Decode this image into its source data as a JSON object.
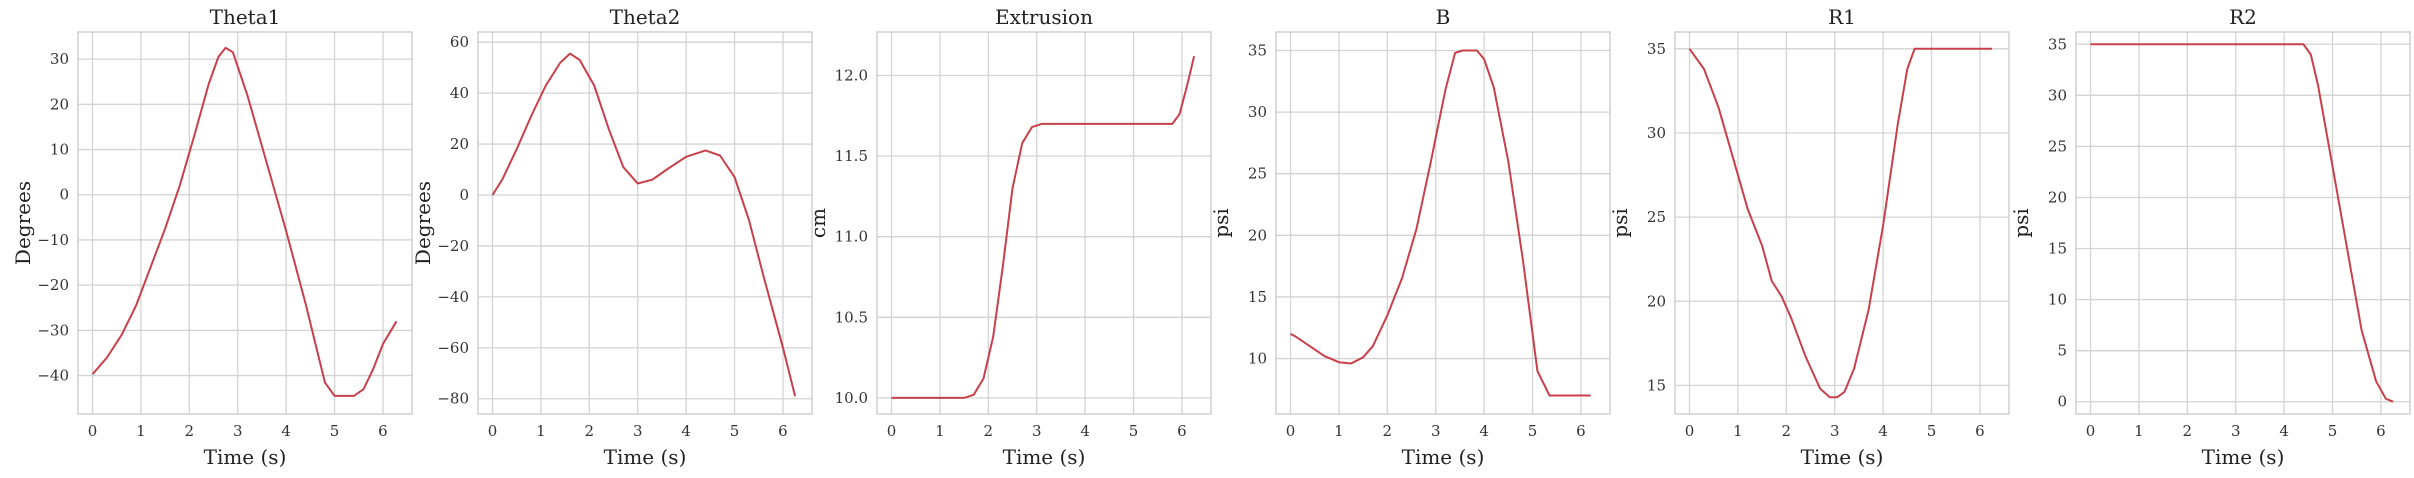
{
  "series_color": "#c8404a",
  "chart_data": [
    {
      "type": "line",
      "title": "Theta1",
      "xlabel": "Time (s)",
      "ylabel": "Degrees",
      "xlim": [
        -0.3,
        6.6
      ],
      "ylim": [
        -48.5,
        36
      ],
      "xticks": [
        0,
        1,
        2,
        3,
        4,
        5,
        6
      ],
      "yticks": [
        -40,
        -30,
        -20,
        -10,
        0,
        10,
        20,
        30
      ],
      "grid": true,
      "series": [
        {
          "x": [
            0,
            0.3,
            0.6,
            0.9,
            1.2,
            1.5,
            1.8,
            2.1,
            2.4,
            2.6,
            2.75,
            2.9,
            3.2,
            3.6,
            4.0,
            4.4,
            4.8,
            5.0,
            5.4,
            5.6,
            5.8,
            6.0,
            6.28
          ],
          "y": [
            -39.7,
            -36,
            -31,
            -24.5,
            -16,
            -7.5,
            2,
            13,
            24.5,
            30.5,
            32.5,
            31.5,
            22,
            7,
            -8,
            -24,
            -41.5,
            -44.5,
            -44.5,
            -43,
            -38.5,
            -33,
            -28
          ]
        }
      ]
    },
    {
      "type": "line",
      "title": "Theta2",
      "xlabel": "Time (s)",
      "ylabel": "Degrees",
      "xlim": [
        -0.3,
        6.6
      ],
      "ylim": [
        -86,
        64
      ],
      "xticks": [
        0,
        1,
        2,
        3,
        4,
        5,
        6
      ],
      "yticks": [
        -80,
        -60,
        -40,
        -20,
        0,
        20,
        40,
        60
      ],
      "grid": true,
      "series": [
        {
          "x": [
            0,
            0.2,
            0.5,
            0.8,
            1.1,
            1.4,
            1.6,
            1.8,
            2.1,
            2.4,
            2.7,
            3.0,
            3.3,
            3.6,
            4.0,
            4.4,
            4.7,
            5.0,
            5.3,
            5.6,
            6.0,
            6.25
          ],
          "y": [
            0,
            6,
            18,
            31,
            43,
            52,
            55.5,
            53,
            43,
            26,
            11,
            4.5,
            6,
            10,
            15,
            17.5,
            15.5,
            7,
            -10,
            -32,
            -60,
            -79
          ]
        }
      ]
    },
    {
      "type": "line",
      "title": "Extrusion",
      "xlabel": "Time (s)",
      "ylabel": "cm",
      "xlim": [
        -0.3,
        6.6
      ],
      "ylim": [
        9.9,
        12.27
      ],
      "xticks": [
        0,
        1,
        2,
        3,
        4,
        5,
        6
      ],
      "yticks": [
        10.0,
        10.5,
        11.0,
        11.5,
        12.0
      ],
      "grid": true,
      "series": [
        {
          "x": [
            0,
            0.5,
            1.0,
            1.5,
            1.7,
            1.9,
            2.1,
            2.3,
            2.5,
            2.7,
            2.9,
            3.1,
            3.5,
            4.0,
            4.5,
            5.0,
            5.5,
            5.8,
            5.95,
            6.1,
            6.25
          ],
          "y": [
            10.0,
            10.0,
            10.0,
            10.0,
            10.02,
            10.12,
            10.38,
            10.82,
            11.3,
            11.58,
            11.68,
            11.7,
            11.7,
            11.7,
            11.7,
            11.7,
            11.7,
            11.7,
            11.76,
            11.93,
            12.12
          ]
        }
      ]
    },
    {
      "type": "line",
      "title": "B",
      "xlabel": "Time (s)",
      "ylabel": "psi",
      "xlim": [
        -0.3,
        6.6
      ],
      "ylim": [
        5.5,
        36.5
      ],
      "xticks": [
        0,
        1,
        2,
        3,
        4,
        5,
        6
      ],
      "yticks": [
        10,
        15,
        20,
        25,
        30,
        35
      ],
      "grid": true,
      "series": [
        {
          "x": [
            0,
            0.1,
            0.4,
            0.7,
            1.0,
            1.25,
            1.5,
            1.7,
            2.0,
            2.3,
            2.6,
            2.9,
            3.2,
            3.4,
            3.55,
            3.7,
            3.85,
            4.0,
            4.2,
            4.5,
            4.8,
            5.1,
            5.35,
            5.5,
            5.8,
            6.2
          ],
          "y": [
            12,
            11.8,
            11,
            10.2,
            9.7,
            9.6,
            10.1,
            11,
            13.5,
            16.5,
            20.5,
            26,
            31.8,
            34.8,
            35,
            35,
            35,
            34.3,
            32,
            26,
            18,
            9,
            7,
            7,
            7,
            7
          ]
        }
      ]
    },
    {
      "type": "line",
      "title": "R1",
      "xlabel": "Time (s)",
      "ylabel": "psi",
      "xlim": [
        -0.3,
        6.6
      ],
      "ylim": [
        13.3,
        36
      ],
      "xticks": [
        0,
        1,
        2,
        3,
        4,
        5,
        6
      ],
      "yticks": [
        15,
        20,
        25,
        30,
        35
      ],
      "grid": true,
      "series": [
        {
          "x": [
            0,
            0.3,
            0.6,
            0.9,
            1.2,
            1.5,
            1.7,
            1.9,
            2.1,
            2.4,
            2.7,
            2.9,
            3.05,
            3.2,
            3.4,
            3.7,
            4.0,
            4.3,
            4.5,
            4.65,
            4.9,
            5.3,
            5.8,
            6.25
          ],
          "y": [
            35,
            33.8,
            31.5,
            28.5,
            25.5,
            23.3,
            21.2,
            20.3,
            19,
            16.7,
            14.8,
            14.3,
            14.3,
            14.6,
            16,
            19.5,
            24.5,
            30.5,
            33.8,
            35,
            35,
            35,
            35,
            35
          ]
        }
      ]
    },
    {
      "type": "line",
      "title": "R2",
      "xlabel": "Time (s)",
      "ylabel": "psi",
      "xlim": [
        -0.3,
        6.6
      ],
      "ylim": [
        -1.2,
        36.2
      ],
      "xticks": [
        0,
        1,
        2,
        3,
        4,
        5,
        6
      ],
      "yticks": [
        0,
        5,
        10,
        15,
        20,
        25,
        30,
        35
      ],
      "grid": true,
      "series": [
        {
          "x": [
            0,
            1,
            2,
            3,
            4,
            4.4,
            4.55,
            4.7,
            5.0,
            5.3,
            5.6,
            5.9,
            6.1,
            6.25
          ],
          "y": [
            35,
            35,
            35,
            35,
            35,
            35,
            34,
            31,
            23,
            15,
            7,
            2,
            0.3,
            0
          ]
        }
      ]
    }
  ]
}
